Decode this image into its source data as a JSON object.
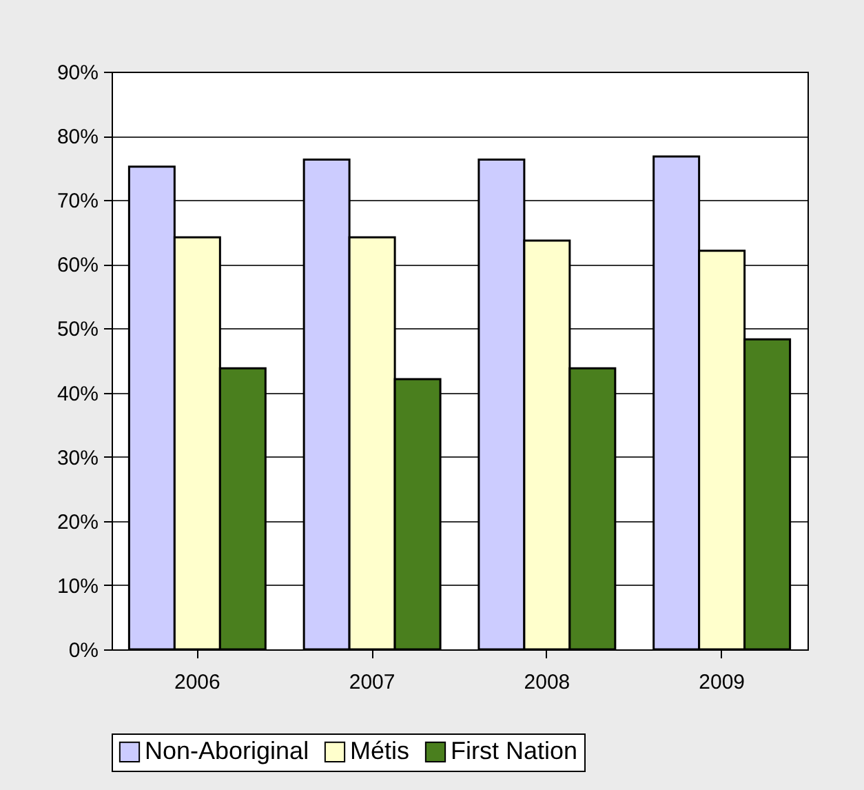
{
  "chart_data": {
    "type": "bar",
    "categories": [
      "2006",
      "2007",
      "2008",
      "2009"
    ],
    "series": [
      {
        "name": "Non-Aboriginal",
        "color": "#ccccff",
        "values": [
          75.2,
          76.3,
          76.3,
          76.8
        ]
      },
      {
        "name": "Métis",
        "color": "#ffffcc",
        "values": [
          64.2,
          64.2,
          63.7,
          62.1
        ]
      },
      {
        "name": "First Nation",
        "color": "#4a7f1e",
        "values": [
          43.8,
          42.1,
          43.8,
          48.3
        ]
      }
    ],
    "ylim": [
      0,
      90
    ],
    "yticks": [
      {
        "value": 0,
        "label": "0%"
      },
      {
        "value": 10,
        "label": "10%"
      },
      {
        "value": 20,
        "label": "20%"
      },
      {
        "value": 30,
        "label": "30%"
      },
      {
        "value": 40,
        "label": "40%"
      },
      {
        "value": 50,
        "label": "50%"
      },
      {
        "value": 60,
        "label": "60%"
      },
      {
        "value": 70,
        "label": "70%"
      },
      {
        "value": 80,
        "label": "80%"
      },
      {
        "value": 90,
        "label": "90%"
      }
    ],
    "grid": "y",
    "legend": "bottom"
  }
}
